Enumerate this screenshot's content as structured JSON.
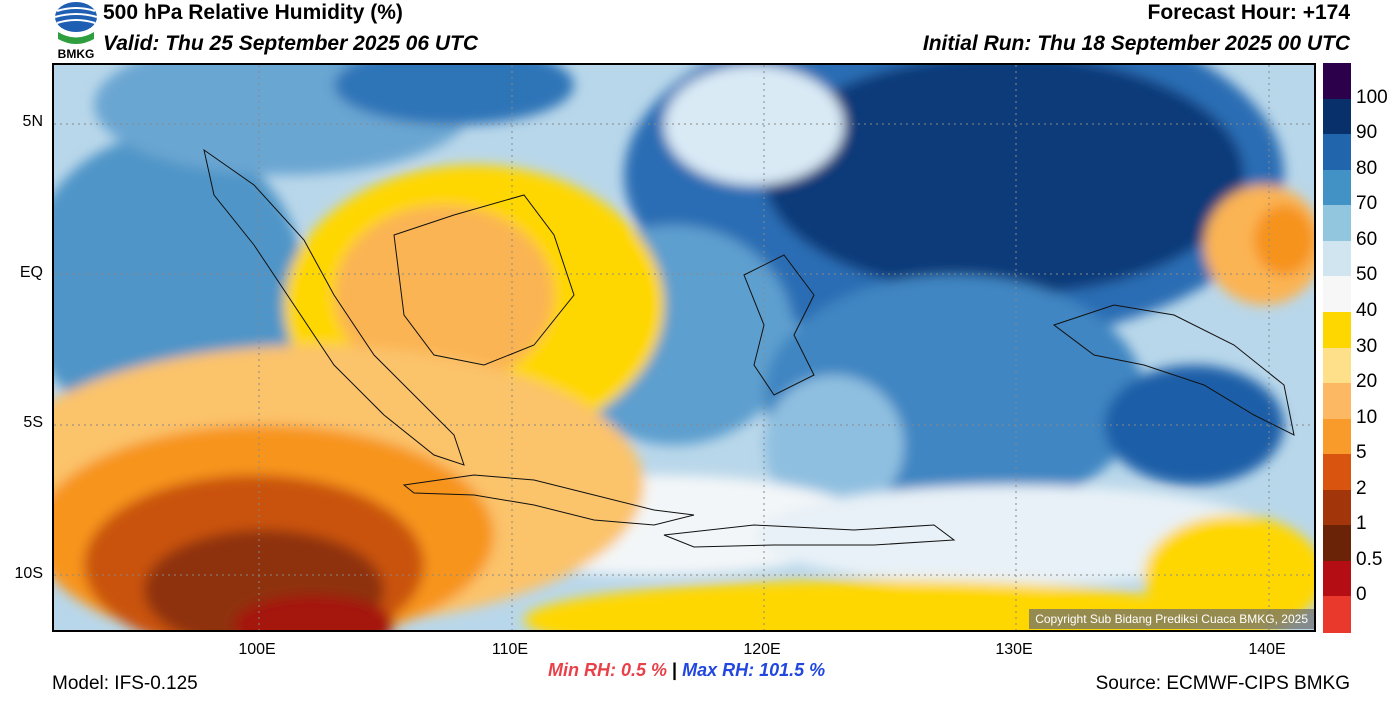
{
  "header": {
    "title": "500 hPa Relative Humidity (%)",
    "valid": "Valid: Thu 25 September 2025 06 UTC",
    "forecast_hour": "Forecast Hour: +174",
    "initial_run": "Initial Run: Thu 18 September 2025 00 UTC",
    "logo_text": "BMKG"
  },
  "axes": {
    "lat_labels": [
      "5N",
      "EQ",
      "5S",
      "10S"
    ],
    "lon_labels": [
      "100E",
      "110E",
      "120E",
      "130E",
      "140E"
    ]
  },
  "colorbar": {
    "labels": [
      "100",
      "90",
      "80",
      "70",
      "60",
      "50",
      "40",
      "30",
      "20",
      "10",
      "5",
      "2",
      "1",
      "0.5",
      "0"
    ],
    "colors": [
      "#2d004b",
      "#08306b",
      "#2166ac",
      "#4292c6",
      "#92c5de",
      "#d1e5f0",
      "#f7f7f7",
      "#ffd700",
      "#fee08b",
      "#fdb863",
      "#f89b2a",
      "#d9540f",
      "#a2360a",
      "#6b2308",
      "#b40d14",
      "#e8392c"
    ]
  },
  "footer": {
    "model": "Model: IFS-0.125",
    "min_rh": "Min RH:   0.5 %",
    "separator": "|",
    "max_rh": "Max RH: 101.5 %",
    "source": "Source: ECMWF-CIPS BMKG",
    "copyright": "Copyright Sub Bidang Prediksi Cuaca BMKG, 2025"
  }
}
